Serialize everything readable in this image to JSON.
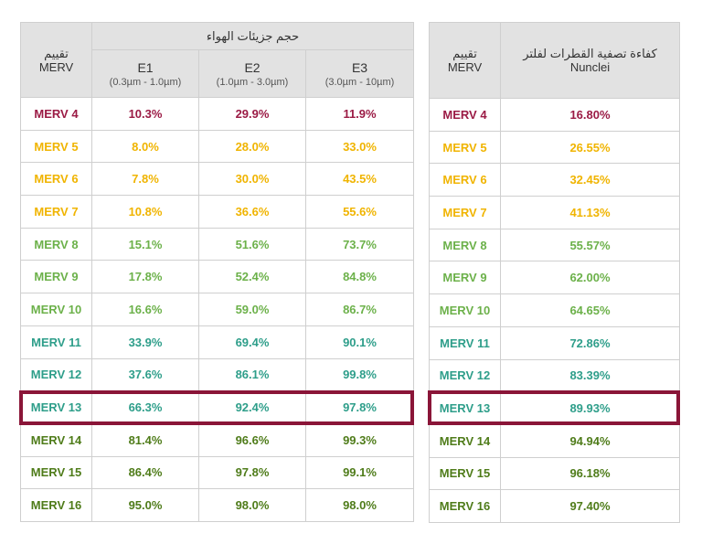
{
  "colors": {
    "c1": "#9b1b45",
    "c2": "#f0b400",
    "c3": "#6cb14a",
    "c4": "#2e9e8a",
    "c5": "#4f7c1a",
    "highlight": "#8a1538",
    "header_bg": "#e2e2e2"
  },
  "left_table": {
    "merv_header": "تقييم\nMERV",
    "group_header": "حجم جزيئات الهواء",
    "columns": [
      {
        "name": "E1",
        "range": "(0.3µm - 1.0µm)"
      },
      {
        "name": "E2",
        "range": "(1.0µm - 3.0µm)"
      },
      {
        "name": "E3",
        "range": "(3.0µm - 10µm)"
      }
    ],
    "rows": [
      {
        "merv": "MERV 4",
        "e1": "10.3%",
        "e2": "29.9%",
        "e3": "11.9%",
        "color": "#9b1b45"
      },
      {
        "merv": "MERV 5",
        "e1": "8.0%",
        "e2": "28.0%",
        "e3": "33.0%",
        "color": "#f0b400"
      },
      {
        "merv": "MERV 6",
        "e1": "7.8%",
        "e2": "30.0%",
        "e3": "43.5%",
        "color": "#f0b400"
      },
      {
        "merv": "MERV 7",
        "e1": "10.8%",
        "e2": "36.6%",
        "e3": "55.6%",
        "color": "#f0b400"
      },
      {
        "merv": "MERV 8",
        "e1": "15.1%",
        "e2": "51.6%",
        "e3": "73.7%",
        "color": "#6cb14a"
      },
      {
        "merv": "MERV 9",
        "e1": "17.8%",
        "e2": "52.4%",
        "e3": "84.8%",
        "color": "#6cb14a"
      },
      {
        "merv": "MERV 10",
        "e1": "16.6%",
        "e2": "59.0%",
        "e3": "86.7%",
        "color": "#6cb14a"
      },
      {
        "merv": "MERV 11",
        "e1": "33.9%",
        "e2": "69.4%",
        "e3": "90.1%",
        "color": "#2e9e8a"
      },
      {
        "merv": "MERV 12",
        "e1": "37.6%",
        "e2": "86.1%",
        "e3": "99.8%",
        "color": "#2e9e8a"
      },
      {
        "merv": "MERV 13",
        "e1": "66.3%",
        "e2": "92.4%",
        "e3": "97.8%",
        "color": "#2e9e8a"
      },
      {
        "merv": "MERV 14",
        "e1": "81.4%",
        "e2": "96.6%",
        "e3": "99.3%",
        "color": "#4f7c1a"
      },
      {
        "merv": "MERV 15",
        "e1": "86.4%",
        "e2": "97.8%",
        "e3": "99.1%",
        "color": "#4f7c1a"
      },
      {
        "merv": "MERV 16",
        "e1": "95.0%",
        "e2": "98.0%",
        "e3": "98.0%",
        "color": "#4f7c1a"
      }
    ]
  },
  "right_table": {
    "merv_header": "تقييم\nMERV",
    "efficiency_header": "كفاءة تصفية القطرات لفلتر\nNunclei",
    "rows": [
      {
        "merv": "MERV 4",
        "value": "16.80%",
        "color": "#9b1b45"
      },
      {
        "merv": "MERV 5",
        "value": "26.55%",
        "color": "#f0b400"
      },
      {
        "merv": "MERV 6",
        "value": "32.45%",
        "color": "#f0b400"
      },
      {
        "merv": "MERV 7",
        "value": "41.13%",
        "color": "#f0b400"
      },
      {
        "merv": "MERV 8",
        "value": "55.57%",
        "color": "#6cb14a"
      },
      {
        "merv": "MERV 9",
        "value": "62.00%",
        "color": "#6cb14a"
      },
      {
        "merv": "MERV 10",
        "value": "64.65%",
        "color": "#6cb14a"
      },
      {
        "merv": "MERV 11",
        "value": "72.86%",
        "color": "#2e9e8a"
      },
      {
        "merv": "MERV 12",
        "value": "83.39%",
        "color": "#2e9e8a"
      },
      {
        "merv": "MERV 13",
        "value": "89.93%",
        "color": "#2e9e8a"
      },
      {
        "merv": "MERV 14",
        "value": "94.94%",
        "color": "#4f7c1a"
      },
      {
        "merv": "MERV 15",
        "value": "96.18%",
        "color": "#4f7c1a"
      },
      {
        "merv": "MERV 16",
        "value": "97.40%",
        "color": "#4f7c1a"
      }
    ]
  },
  "highlighted_row": "MERV 13"
}
